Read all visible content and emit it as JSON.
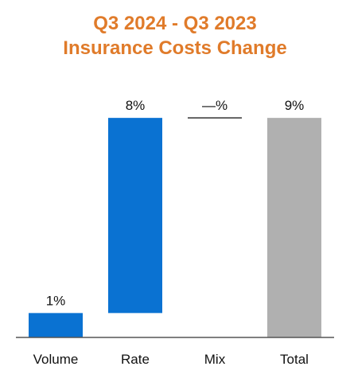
{
  "title": {
    "line1": "Q3 2024 - Q3 2023",
    "line2": "Insurance Costs Change"
  },
  "colors": {
    "title": "#e07b2a",
    "increase": "#0a72d2",
    "total": "#b0b0b0",
    "axis": "#555555",
    "zero_marker": "#333333"
  },
  "chart_data": {
    "type": "bar",
    "subtype": "waterfall",
    "categories": [
      "Volume",
      "Rate",
      "Mix",
      "Total"
    ],
    "values": [
      1,
      8,
      0,
      9
    ],
    "data_labels": [
      "1%",
      "8%",
      "—%",
      "9%"
    ],
    "bar_kinds": [
      "increase",
      "increase",
      "zero",
      "total"
    ],
    "ylim": [
      0,
      9.2
    ],
    "grid": false,
    "legend": "none",
    "title": "Q3 2024 - Q3 2023 Insurance Costs Change"
  }
}
